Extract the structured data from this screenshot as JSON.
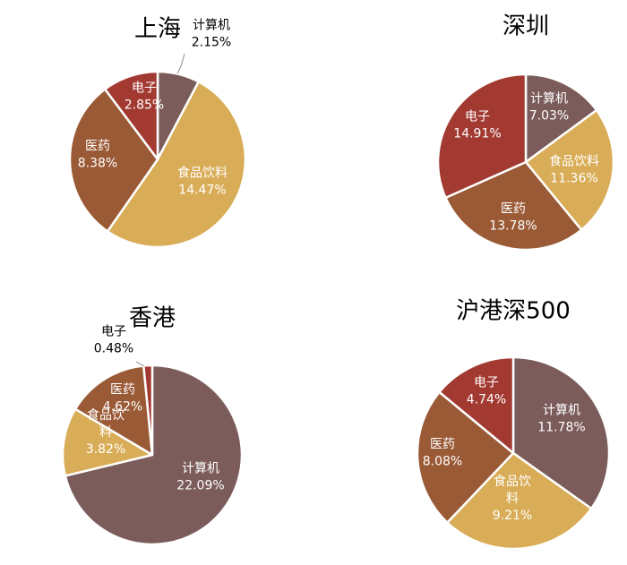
{
  "colors": {
    "计算机": "#7b5c5b",
    "食品饮料": "#d9ad57",
    "医药": "#9a5a36",
    "电子": "#a33a32"
  },
  "chart_data": [
    {
      "type": "pie",
      "title": "上海",
      "slices": [
        {
          "name": "计算机",
          "value": 2.15,
          "label": "2.15%",
          "name_lines": [
            "计算机"
          ]
        },
        {
          "name": "食品饮料",
          "value": 14.47,
          "label": "14.47%",
          "name_lines": [
            "食品饮料"
          ]
        },
        {
          "name": "医药",
          "value": 8.38,
          "label": "8.38%",
          "name_lines": [
            "医药"
          ]
        },
        {
          "name": "电子",
          "value": 2.85,
          "label": "2.85%",
          "name_lines": [
            "电子"
          ]
        }
      ]
    },
    {
      "type": "pie",
      "title": "深圳",
      "slices": [
        {
          "name": "计算机",
          "value": 7.03,
          "label": "7.03%",
          "name_lines": [
            "计算机"
          ]
        },
        {
          "name": "食品饮料",
          "value": 11.36,
          "label": "11.36%",
          "name_lines": [
            "食品饮料"
          ]
        },
        {
          "name": "医药",
          "value": 13.78,
          "label": "13.78%",
          "name_lines": [
            "医药"
          ]
        },
        {
          "name": "电子",
          "value": 14.91,
          "label": "14.91%",
          "name_lines": [
            "电子"
          ]
        }
      ]
    },
    {
      "type": "pie",
      "title": "香港",
      "slices": [
        {
          "name": "计算机",
          "value": 22.09,
          "label": "22.09%",
          "name_lines": [
            "计算机"
          ]
        },
        {
          "name": "食品饮料",
          "value": 3.82,
          "label": "3.82%",
          "name_lines": [
            "食品饮",
            "料"
          ]
        },
        {
          "name": "医药",
          "value": 4.62,
          "label": "4.62%",
          "name_lines": [
            "医药"
          ]
        },
        {
          "name": "电子",
          "value": 0.48,
          "label": "0.48%",
          "name_lines": [
            "电子"
          ]
        }
      ]
    },
    {
      "type": "pie",
      "title": "沪港深500",
      "slices": [
        {
          "name": "计算机",
          "value": 11.78,
          "label": "11.78%",
          "name_lines": [
            "计算机"
          ]
        },
        {
          "name": "食品饮料",
          "value": 9.21,
          "label": "9.21%",
          "name_lines": [
            "食品饮",
            "料"
          ]
        },
        {
          "name": "医药",
          "value": 8.08,
          "label": "8.08%",
          "name_lines": [
            "医药"
          ]
        },
        {
          "name": "电子",
          "value": 4.74,
          "label": "4.74%",
          "name_lines": [
            "电子"
          ]
        }
      ]
    }
  ]
}
